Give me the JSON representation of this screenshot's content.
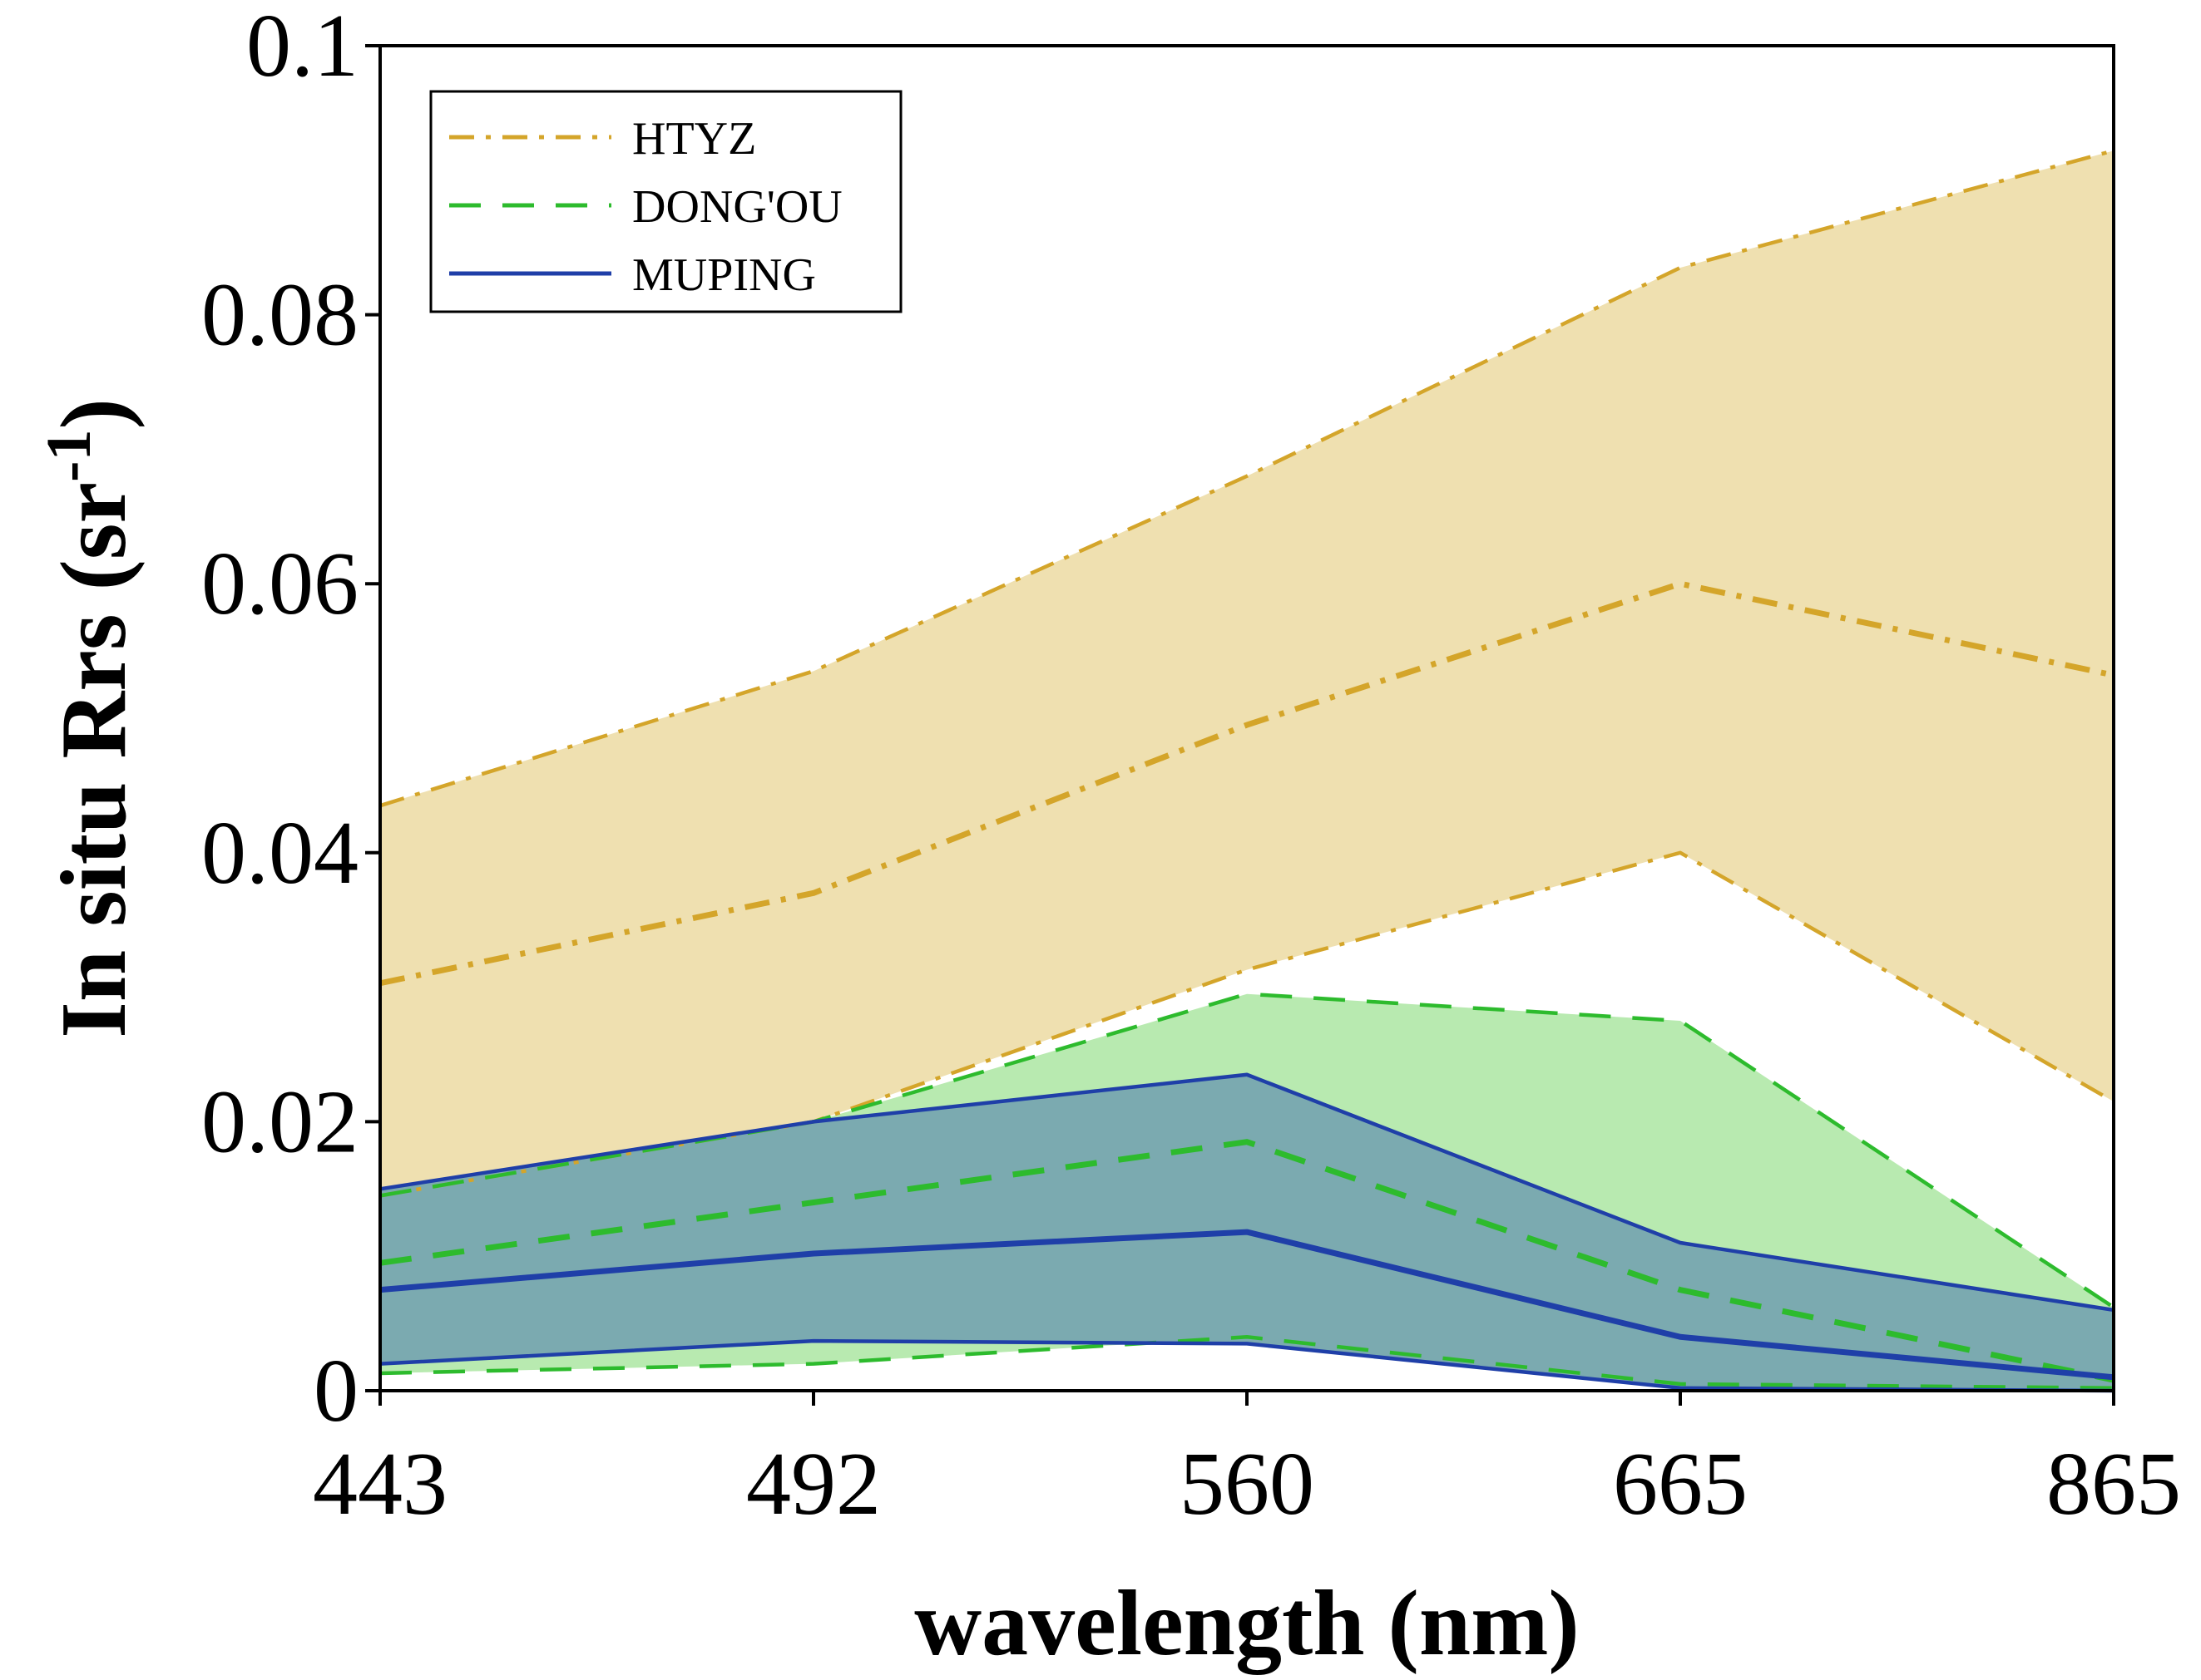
{
  "chart_data": {
    "type": "area",
    "xlabel": "wavelength (nm)",
    "ylabel_main": "In situ Rrs (sr",
    "ylabel_sup": "-1",
    "ylabel_close": ")",
    "categories": [
      "443",
      "492",
      "560",
      "665",
      "865"
    ],
    "ylim": [
      0,
      0.1
    ],
    "yticks": [
      0,
      0.02,
      0.04,
      0.06,
      0.08,
      0.1
    ],
    "ytick_labels": [
      "0",
      "0.02",
      "0.04",
      "0.06",
      "0.08",
      "0.1"
    ],
    "legend_position": "top-left",
    "series": [
      {
        "name": "HTYZ",
        "line_style": "dash-dot",
        "color": "#D4A52A",
        "fill": "#EFE0B0",
        "upper": [
          0.0435,
          0.0535,
          0.068,
          0.0835,
          0.0922
        ],
        "median": [
          0.0303,
          0.037,
          0.0495,
          0.06,
          0.0532
        ],
        "lower": [
          0.0145,
          0.02,
          0.0313,
          0.04,
          0.0215
        ]
      },
      {
        "name": "DONG'OU",
        "line_style": "dashed",
        "color": "#2DBB2D",
        "fill": "#B8EAB0",
        "upper": [
          0.0145,
          0.02,
          0.0295,
          0.0275,
          0.0062
        ],
        "median": [
          0.0095,
          0.014,
          0.0185,
          0.0075,
          0.0008
        ],
        "lower": [
          0.0013,
          0.002,
          0.004,
          0.0005,
          0.0002
        ]
      },
      {
        "name": "MUPING",
        "line_style": "solid",
        "color": "#1F3FA8",
        "fill": "#7BAAB0",
        "upper": [
          0.015,
          0.02,
          0.0235,
          0.011,
          0.006
        ],
        "median": [
          0.0075,
          0.0102,
          0.0118,
          0.004,
          0.001
        ],
        "lower": [
          0.002,
          0.0037,
          0.0035,
          0.0002,
          0.0
        ]
      }
    ]
  }
}
